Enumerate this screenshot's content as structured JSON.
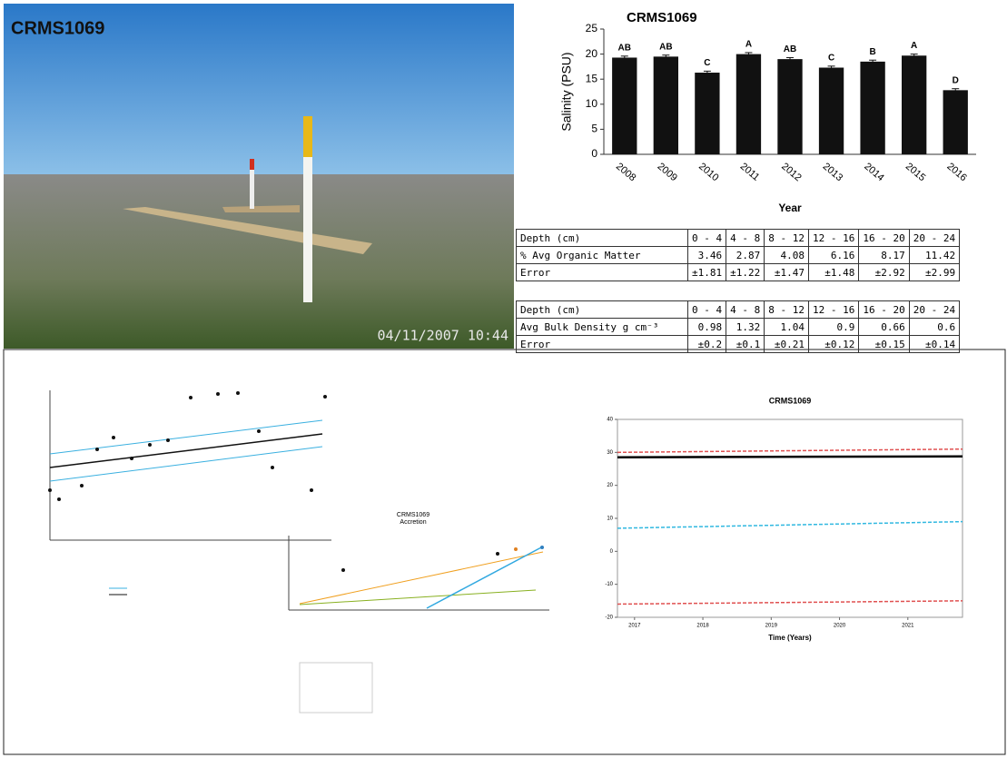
{
  "photo": {
    "label": "CRMS1069",
    "timestamp": "04/11/2007 10:44"
  },
  "chart_data": [
    {
      "type": "bar",
      "title": "CRMS1069",
      "y_label": "Salinity (PSU)",
      "x_label": "Year",
      "categories": [
        "2008",
        "2009",
        "2010",
        "2011",
        "2012",
        "2013",
        "2014",
        "2015",
        "2016"
      ],
      "values": [
        19.3,
        19.5,
        16.3,
        20,
        19,
        17.3,
        18.5,
        19.7,
        12.8
      ],
      "errors": [
        0.3,
        0.3,
        0.3,
        0.3,
        0.3,
        0.3,
        0.3,
        0.3,
        0.3
      ],
      "annotations": [
        "AB",
        "AB",
        "C",
        "A",
        "AB",
        "C",
        "B",
        "A",
        "D"
      ],
      "color": "#111111",
      "ylim": [
        0,
        25
      ],
      "yticks": [
        0,
        5,
        10,
        15,
        20,
        25
      ]
    },
    {
      "type": "line",
      "title": "CRMS1069",
      "x_label": "Time (Years)",
      "x": [
        2016.75,
        2021.8
      ],
      "series": [
        {
          "color": "#e05050",
          "style": "dashed",
          "values": [
            30,
            31
          ]
        },
        {
          "color": "#000000",
          "style": "solid",
          "values": [
            28.5,
            28.8
          ]
        },
        {
          "color": "#30b8e0",
          "style": "dashed",
          "values": [
            7,
            9
          ]
        },
        {
          "color": "#e05050",
          "style": "dashed",
          "values": [
            -16,
            -15
          ]
        }
      ],
      "xlim": [
        2016.75,
        2021.8
      ],
      "xticks": [
        2017,
        2018,
        2019,
        2020,
        2021
      ],
      "ylim": [
        -20,
        40
      ],
      "yticks": [
        -20,
        -10,
        0,
        10,
        20,
        30,
        40
      ]
    }
  ],
  "tables": [
    {
      "header": [
        "Depth (cm)",
        "0 - 4",
        "4 - 8",
        "8 - 12",
        "12 - 16",
        "16 - 20",
        "20 - 24"
      ],
      "rows": [
        [
          "% Avg Organic Matter",
          3.46,
          2.87,
          4.08,
          6.16,
          8.17,
          11.42
        ],
        [
          "Error",
          "±1.81",
          "±1.22",
          "±1.47",
          "±1.48",
          "±2.92",
          "±2.99"
        ]
      ]
    },
    {
      "header": [
        "Depth (cm)",
        "0 - 4",
        "4 - 8",
        "8 - 12",
        "12 - 16",
        "16 - 20",
        "20 - 24"
      ],
      "rows": [
        [
          "Avg Bulk Density g cm⁻³",
          0.98,
          1.32,
          1.04,
          0.9,
          0.66,
          0.6
        ],
        [
          "Error",
          "±0.2",
          "±0.1",
          "±0.21",
          "±0.12",
          "±0.15",
          "±0.14"
        ]
      ]
    }
  ],
  "accretion_title": [
    "CRMS1069",
    "Accretion"
  ]
}
